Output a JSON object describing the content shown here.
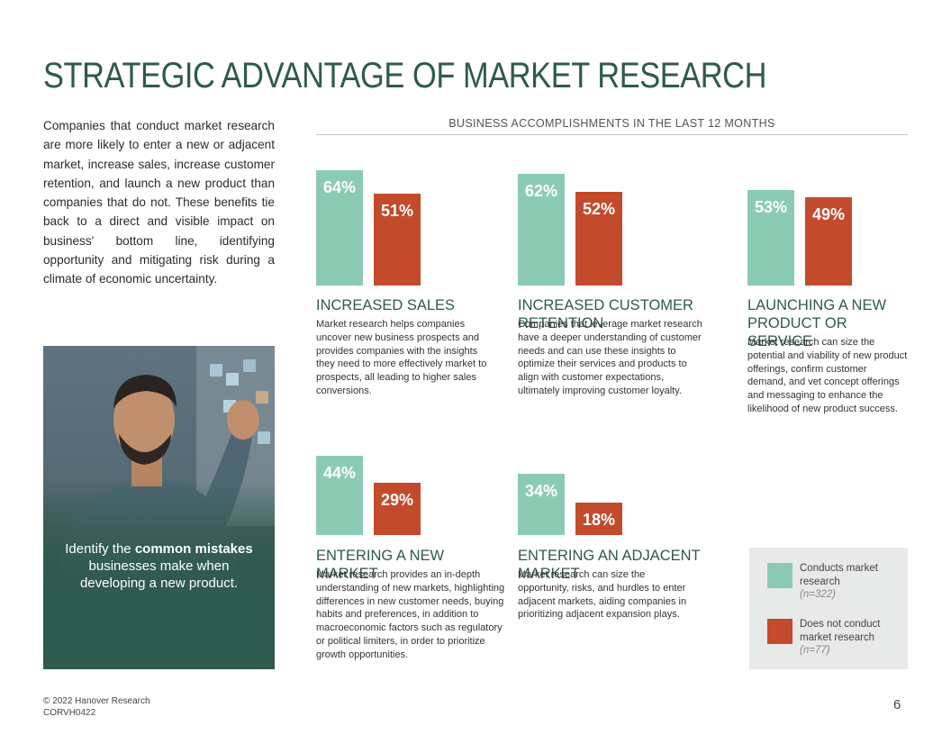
{
  "title": "STRATEGIC ADVANTAGE OF MARKET RESEARCH",
  "intro": "Companies that conduct market research are more likely to enter a new or adjacent market, increase sales, increase customer retention, and launch a new product than companies that do not. These benefits tie back to a direct and visible impact on business' bottom line, identifying opportunity and mitigating risk during a climate of economic uncertainty.",
  "photo_caption": {
    "before": "Identify the ",
    "bold": "common mistakes",
    "after": " businesses make when developing a new product."
  },
  "chart_header": "BUSINESS ACCOMPLISHMENTS IN THE LAST 12 MONTHS",
  "colors": {
    "conducts": "#8ccbb3",
    "does_not": "#c44a2c",
    "heading": "#2f5a4e"
  },
  "chart_data": {
    "type": "bar",
    "title": "BUSINESS ACCOMPLISHMENTS IN THE LAST 12 MONTHS",
    "categories": [
      "INCREASED SALES",
      "INCREASED CUSTOMER RETENTION",
      "LAUNCHING A NEW PRODUCT OR SERVICE",
      "ENTERING A NEW MARKET",
      "ENTERING AN ADJACENT MARKET"
    ],
    "series": [
      {
        "name": "Conducts market research",
        "values": [
          64,
          62,
          53,
          44,
          34
        ],
        "labels": [
          "64%",
          "62%",
          "53%",
          "44%",
          "34%"
        ]
      },
      {
        "name": "Does not conduct market research",
        "values": [
          51,
          52,
          49,
          29,
          18
        ],
        "labels": [
          "51%",
          "52%",
          "49%",
          "29%",
          "18%"
        ]
      }
    ],
    "ylim": [
      0,
      64
    ]
  },
  "categories": [
    {
      "title": "INCREASED SALES",
      "desc": "Market research helps companies uncover new business prospects and provides companies with the insights they need to more effectively market to prospects, all leading to higher sales conversions."
    },
    {
      "title": "INCREASED CUSTOMER RETENTION",
      "desc": "Companies that leverage market research have a deeper understanding of customer needs and can use these insights to optimize their services and products to align with customer expectations, ultimately improving customer loyalty."
    },
    {
      "title": "LAUNCHING A NEW PRODUCT OR SERVICE",
      "desc": "Market research can size the potential and viability of new product offerings, confirm customer demand, and vet concept offerings and messaging to enhance the likelihood of new product success."
    },
    {
      "title": "ENTERING A NEW MARKET",
      "desc": "Market research provides an in-depth understanding of new markets, highlighting differences in new customer needs, buying habits and preferences, in addition to macroeconomic factors such as regulatory or political limiters, in order to prioritize growth opportunities."
    },
    {
      "title": "ENTERING AN ADJACENT MARKET",
      "desc": "Market research can size the opportunity, risks, and hurdles to enter adjacent markets, aiding companies in prioritizing adjacent expansion plays."
    }
  ],
  "legend": {
    "conducts_label": "Conducts market research",
    "conducts_n": "(n=322)",
    "does_not_label": "Does not conduct market research",
    "does_not_n": "(n=77)"
  },
  "footer": {
    "copyright": "© 2022 Hanover Research",
    "code": "CORVH0422"
  },
  "page_number": "6"
}
